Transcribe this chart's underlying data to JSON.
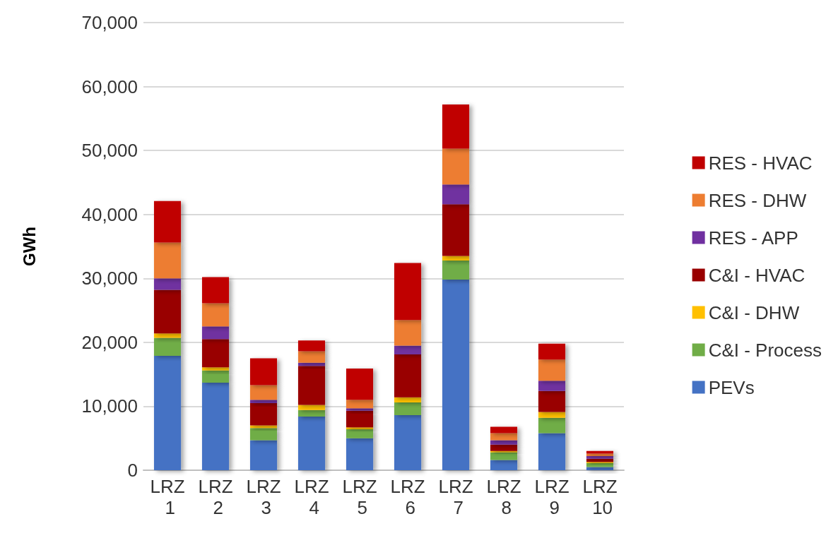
{
  "chart_data": {
    "type": "bar",
    "stacked": true,
    "ylabel": "GWh",
    "categories": [
      "LRZ 1",
      "LRZ 2",
      "LRZ 3",
      "LRZ 4",
      "LRZ 5",
      "LRZ 6",
      "LRZ 7",
      "LRZ 8",
      "LRZ 9",
      "LRZ 10"
    ],
    "series": [
      {
        "name": "PEVs",
        "color": "#4472c4",
        "values": [
          17900,
          13700,
          4700,
          8400,
          5000,
          8600,
          29800,
          1600,
          5800,
          500
        ]
      },
      {
        "name": "C&I - Process",
        "color": "#70ad47",
        "values": [
          2800,
          1900,
          1900,
          1000,
          1400,
          2000,
          3000,
          1200,
          2400,
          600
        ]
      },
      {
        "name": "C&I - DHW",
        "color": "#ffc000",
        "values": [
          700,
          500,
          400,
          800,
          300,
          800,
          700,
          200,
          900,
          200
        ]
      },
      {
        "name": "C&I - HVAC",
        "color": "#990000",
        "values": [
          6800,
          4400,
          3500,
          6100,
          2600,
          6700,
          8100,
          1000,
          3300,
          500
        ]
      },
      {
        "name": "RES - APP",
        "color": "#7030a0",
        "values": [
          1800,
          2000,
          500,
          500,
          400,
          1400,
          3100,
          700,
          1600,
          400
        ]
      },
      {
        "name": "RES - DHW",
        "color": "#ed7d31",
        "values": [
          5600,
          3600,
          2300,
          1800,
          1300,
          4000,
          5600,
          1100,
          3300,
          400
        ]
      },
      {
        "name": "RES - HVAC",
        "color": "#c00000",
        "values": [
          6500,
          4100,
          4200,
          1700,
          4900,
          8900,
          6900,
          1000,
          2500,
          400
        ]
      }
    ],
    "ylim": [
      0,
      70000
    ],
    "yticks": [
      0,
      {
        "value": 10000,
        "label": "10,000"
      },
      {
        "value": 20000,
        "label": "20,000"
      },
      {
        "value": 30000,
        "label": "30,000"
      },
      {
        "value": 40000,
        "label": "40,000"
      },
      {
        "value": 50000,
        "label": "50,000"
      },
      {
        "value": 60000,
        "label": "60,000"
      },
      {
        "value": 70000,
        "label": "70,000"
      }
    ],
    "grid": "y",
    "legend": "right"
  }
}
